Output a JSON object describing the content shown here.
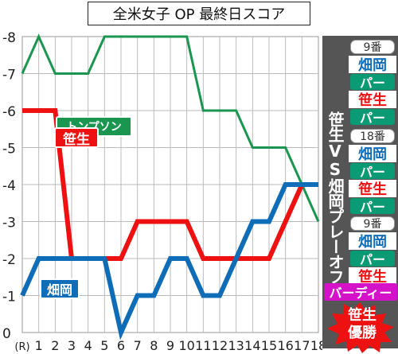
{
  "title": "全米女子 OP 最終日スコア",
  "chart_data": {
    "type": "line",
    "categories": [
      "(R)",
      "1",
      "2",
      "3",
      "4",
      "5",
      "6",
      "7",
      "8",
      "9",
      "10",
      "11",
      "12",
      "13",
      "14",
      "15",
      "16",
      "17",
      "18"
    ],
    "y_tick_labels": [
      "0",
      "-1",
      "-2",
      "-3",
      "-4",
      "-5",
      "-6",
      "-7",
      "-8"
    ],
    "ylim": [
      0,
      8
    ],
    "grid": true,
    "series": [
      {
        "name": "トンプソン",
        "color": "#1a9650",
        "values": [
          7,
          8,
          7,
          7,
          7,
          8,
          8,
          8,
          8,
          8,
          8,
          6,
          6,
          6,
          5,
          5,
          5,
          4,
          3
        ]
      },
      {
        "name": "笹生",
        "color": "#ee1111",
        "values": [
          6,
          6,
          6,
          2,
          2,
          2,
          2,
          3,
          3,
          3,
          3,
          2,
          2,
          2,
          2,
          2,
          3,
          4,
          4
        ]
      },
      {
        "name": "畑岡",
        "color": "#0f6db8",
        "values": [
          1,
          2,
          2,
          2,
          2,
          2,
          0,
          1,
          1,
          2,
          2,
          1,
          1,
          2,
          3,
          3,
          4,
          4,
          4
        ]
      }
    ]
  },
  "sidebar": {
    "vs_label": "笹生VS畑岡プレーオフ",
    "panels": [
      {
        "hole": "9番",
        "rows": [
          {
            "name": "畑岡",
            "name_color": "#0f6db8",
            "result": "パー"
          },
          {
            "name": "笹生",
            "name_color": "#ee1111",
            "result": "パー"
          }
        ]
      },
      {
        "hole": "18番",
        "rows": [
          {
            "name": "畑岡",
            "name_color": "#0f6db8",
            "result": "パー"
          },
          {
            "name": "笹生",
            "name_color": "#ee1111",
            "result": "パー"
          }
        ]
      },
      {
        "hole": "9番",
        "rows": [
          {
            "name": "畑岡",
            "name_color": "#0f6db8",
            "result": "パー"
          },
          {
            "name": "笹生",
            "name_color": "#ee1111",
            "result": ""
          }
        ]
      }
    ],
    "birdie": "バーディー",
    "winner_line1": "笹生",
    "winner_line2": "優勝"
  }
}
